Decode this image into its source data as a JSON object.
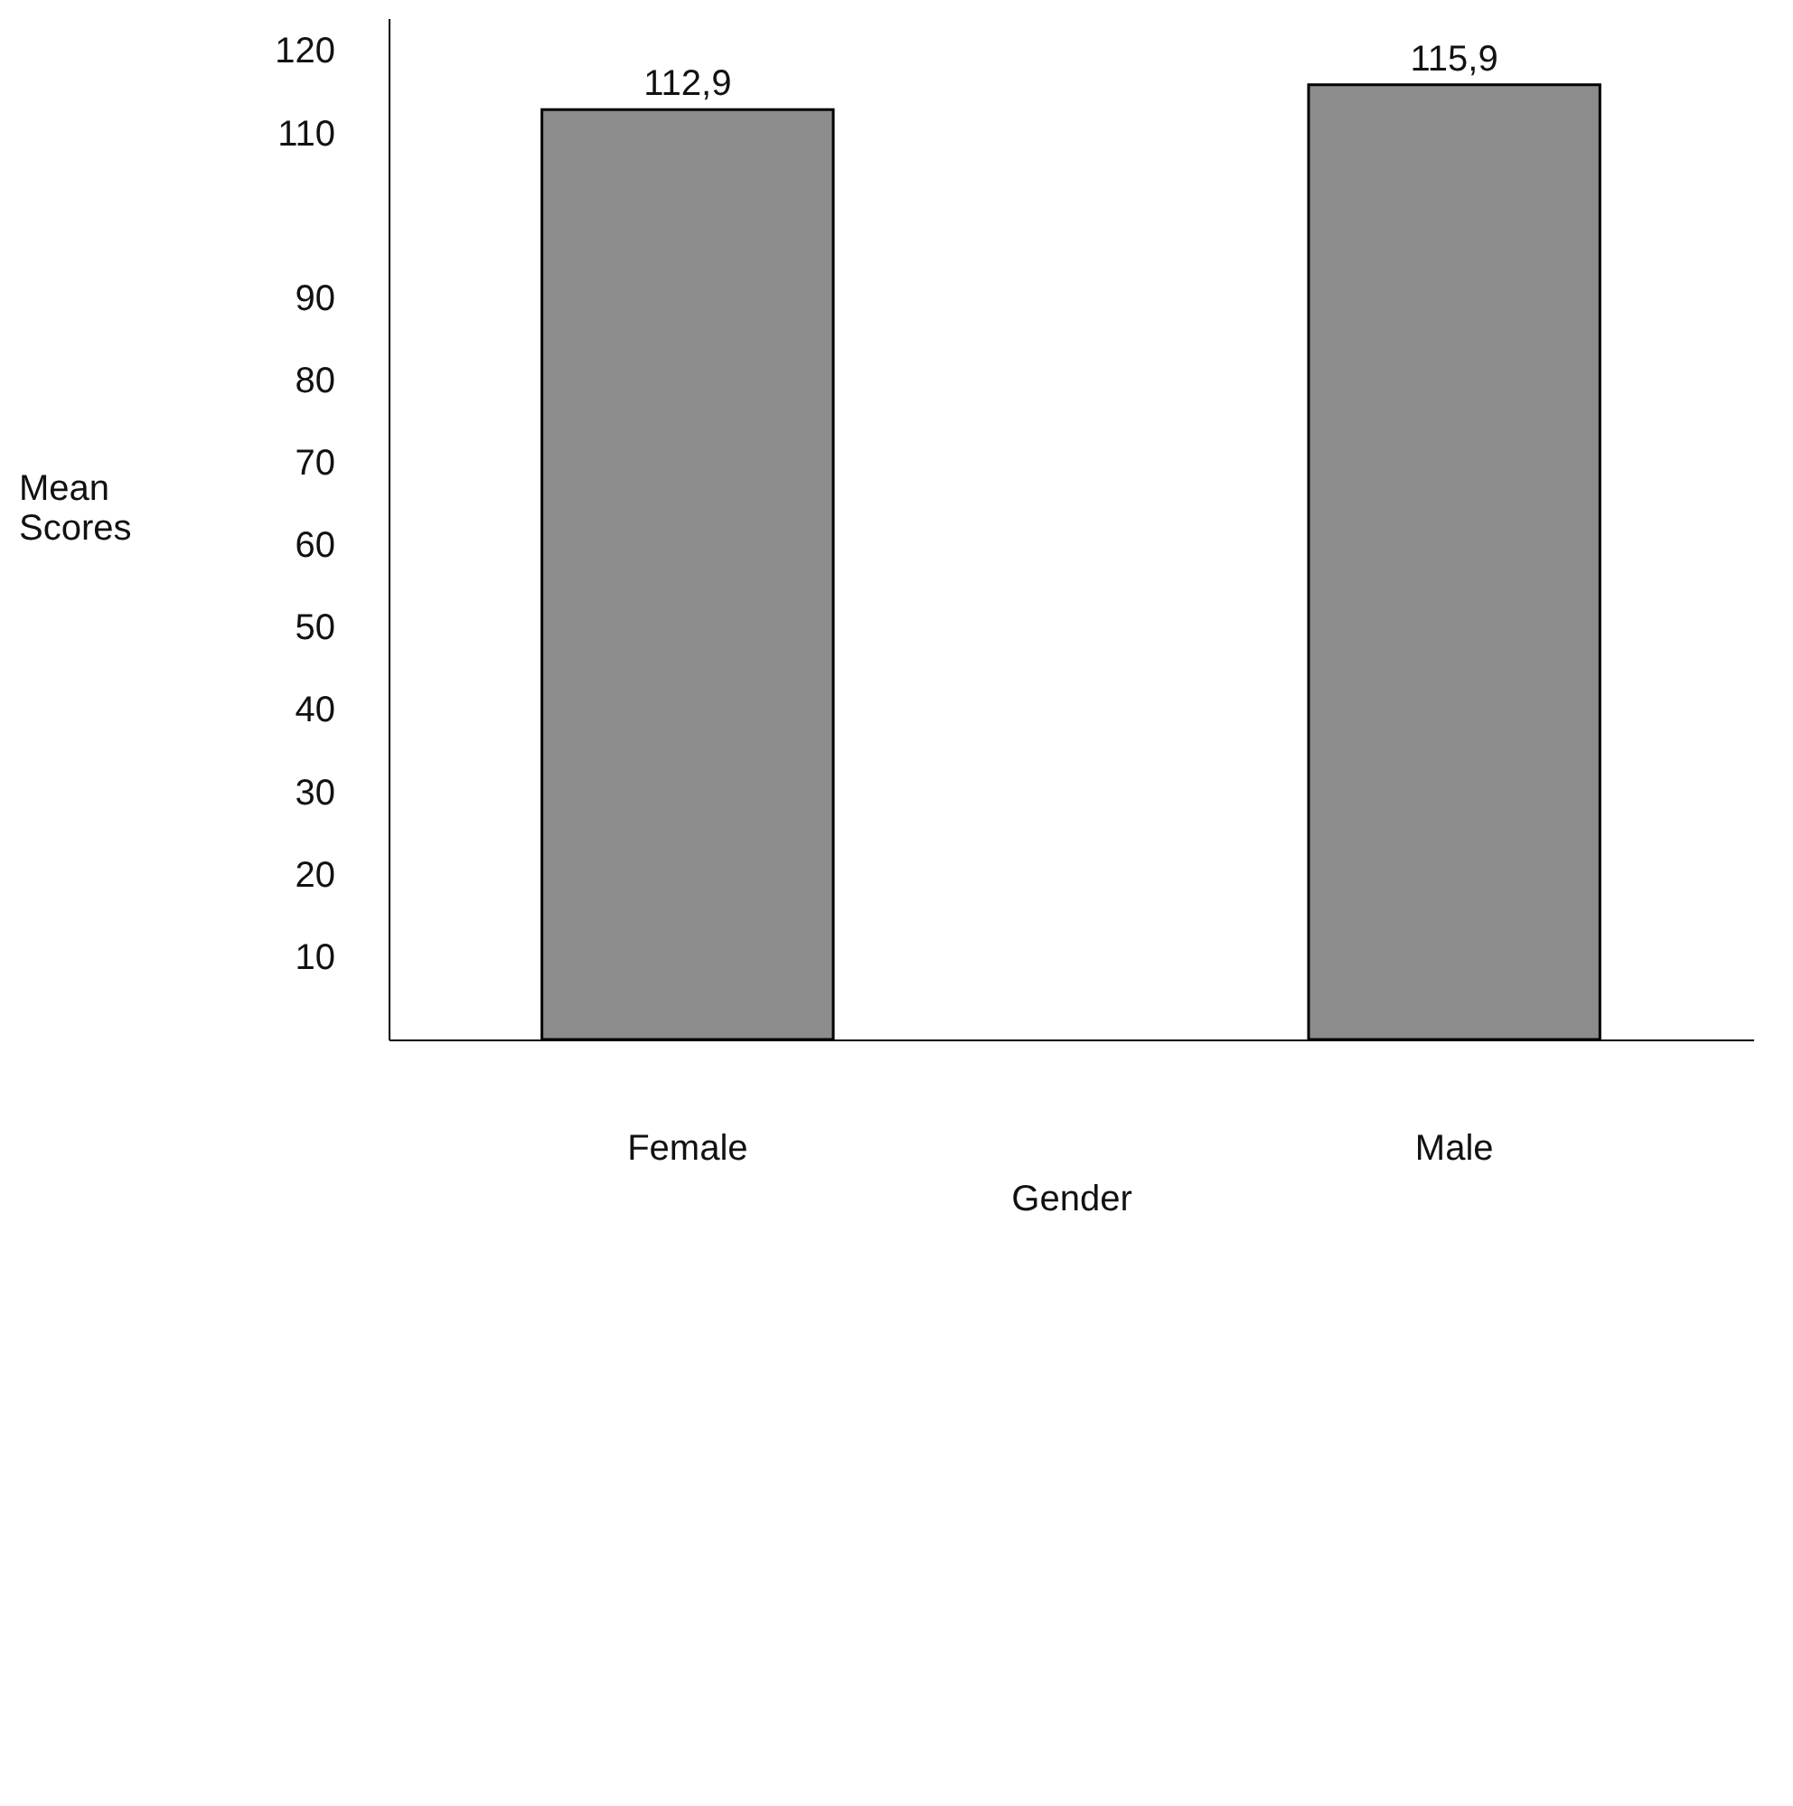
{
  "chart_data": {
    "type": "bar",
    "xlabel": "Gender",
    "ylabel": "Mean Scores",
    "categories": [
      "Female",
      "Male"
    ],
    "values": [
      112.9,
      115.9
    ],
    "value_labels": [
      "112,9",
      "115,9"
    ],
    "color": "#8c8c8c",
    "ylim": [
      0,
      124
    ],
    "yticks": [
      10,
      20,
      30,
      40,
      50,
      60,
      70,
      80,
      90,
      110,
      120
    ],
    "grid": false
  }
}
